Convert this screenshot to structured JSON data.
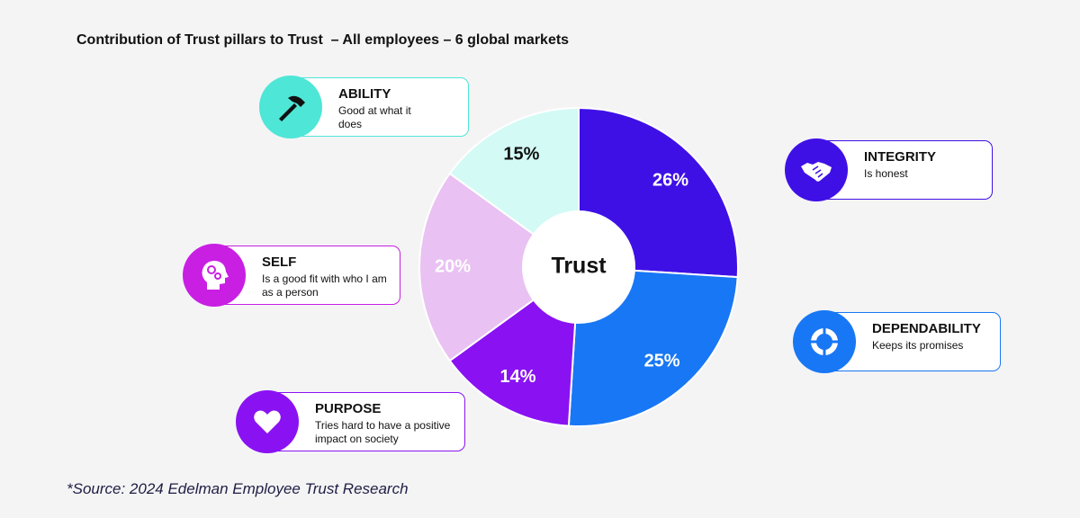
{
  "chart_data": {
    "type": "donut",
    "title": "Contribution of Trust pillars to Trust  – All employees – 6 global markets",
    "center_label": "Trust",
    "categories": [
      "INTEGRITY",
      "DEPENDABILITY",
      "PURPOSE",
      "SELF",
      "ABILITY"
    ],
    "descriptions": [
      "Is honest",
      "Keeps its promises",
      "Tries hard to have a positive impact on society",
      "Is a good fit with who I am as a person",
      "Good at what it does"
    ],
    "values": [
      26,
      25,
      14,
      20,
      15
    ],
    "value_labels": [
      "26%",
      "25%",
      "14%",
      "20%",
      "15%"
    ],
    "colors": [
      "#3f10e6",
      "#1877f4",
      "#8a12f2",
      "#e9c1f2",
      "#d3faf5"
    ],
    "label_colors": [
      "#ffffff",
      "#ffffff",
      "#ffffff",
      "#ffffff",
      "#111111"
    ],
    "icon_colors": [
      "#3f10e6",
      "#1877f4",
      "#8a12f2",
      "#c81fe3",
      "#4ee6d6"
    ],
    "source": "*Source: 2024 Edelman Employee Trust Research"
  }
}
